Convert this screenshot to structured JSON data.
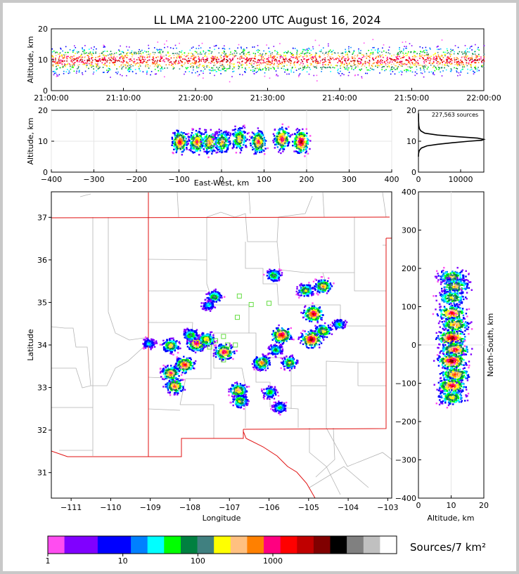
{
  "title": "LL LMA 2100-2200 UTC August 16, 2024",
  "colorbar": {
    "label": "Sources/7 km²",
    "ticks": [
      "1",
      "10",
      "100",
      "1000"
    ],
    "colors": [
      "#ff4df0",
      "#8000ff",
      "#8000ff",
      "#0000ff",
      "#0000ff",
      "#0080ff",
      "#00ffff",
      "#00ff00",
      "#008040",
      "#408080",
      "#ffff00",
      "#ffc080",
      "#ff8000",
      "#ff0080",
      "#ff0000",
      "#c00000",
      "#800000",
      "#000000",
      "#808080",
      "#c0c0c0",
      "#ffffff"
    ]
  },
  "chart_data": [
    {
      "id": "time-altitude",
      "type": "heatmap",
      "ylabel": "Altitude, km",
      "xlabel": "",
      "ylim": [
        0,
        20
      ],
      "xlim": [
        "21:00:00",
        "22:00:00"
      ],
      "x_ticks": [
        "21:00:00",
        "21:10:00",
        "21:20:00",
        "21:30:00",
        "21:40:00",
        "21:50:00",
        "22:00:00"
      ],
      "y_ticks": [
        "0",
        "10",
        "20"
      ],
      "peak_altitude_km": 10
    },
    {
      "id": "ew-altitude",
      "type": "heatmap",
      "xlabel": "East-West, km",
      "ylabel": "Altitude, km",
      "xlim": [
        -400,
        400
      ],
      "ylim": [
        0,
        20
      ],
      "x_ticks": [
        "−400",
        "−300",
        "−200",
        "−100",
        "0",
        "100",
        "200",
        "300",
        "400"
      ],
      "y_ticks": [
        "0",
        "10",
        "20"
      ],
      "cells": [
        {
          "x": -100,
          "alt": 10,
          "level": 15
        },
        {
          "x": -60,
          "alt": 10,
          "level": 14
        },
        {
          "x": -30,
          "alt": 10,
          "level": 13
        },
        {
          "x": 0,
          "alt": 10,
          "level": 12
        },
        {
          "x": 40,
          "alt": 11,
          "level": 12
        },
        {
          "x": 85,
          "alt": 10,
          "level": 14
        },
        {
          "x": 140,
          "alt": 11,
          "level": 15
        },
        {
          "x": 185,
          "alt": 10,
          "level": 17
        }
      ]
    },
    {
      "id": "altitude-histogram",
      "type": "line",
      "annotation": "227,563 sources",
      "xlim": [
        0,
        15500
      ],
      "ylim": [
        0,
        20
      ],
      "x_ticks": [
        "0",
        "10000"
      ],
      "y_ticks": [
        "0",
        "10",
        "20"
      ],
      "x": [
        5,
        40,
        200,
        700,
        2000,
        4500,
        8000,
        12000,
        15000,
        15500,
        14000,
        9000,
        4500,
        1500,
        600,
        250,
        100,
        40,
        10
      ],
      "y": [
        5,
        6,
        7,
        7.8,
        8.5,
        9,
        9.5,
        10,
        10.3,
        10.6,
        11,
        11.5,
        12,
        12.6,
        13.3,
        14,
        15,
        16.5,
        19
      ]
    },
    {
      "id": "plan-view",
      "type": "heatmap",
      "xlabel": "Longitude",
      "ylabel": "Latitude",
      "xlim": [
        -111.5,
        -102.9
      ],
      "ylim": [
        30.4,
        37.6
      ],
      "x_ticks": [
        "−111",
        "−110",
        "−109",
        "−108",
        "−107",
        "−106",
        "−105",
        "−104",
        "−103"
      ],
      "y_ticks": [
        "31",
        "32",
        "33",
        "34",
        "35",
        "36",
        "37"
      ],
      "cells": [
        {
          "lon": -104.95,
          "lat": 34.15,
          "level": 17
        },
        {
          "lon": -105.7,
          "lat": 34.25,
          "level": 16
        },
        {
          "lon": -104.9,
          "lat": 34.75,
          "level": 16
        },
        {
          "lon": -108.15,
          "lat": 33.55,
          "level": 15
        },
        {
          "lon": -107.85,
          "lat": 34.05,
          "level": 15
        },
        {
          "lon": -107.15,
          "lat": 33.85,
          "level": 15
        },
        {
          "lon": -108.4,
          "lat": 33.05,
          "level": 14
        },
        {
          "lon": -108.5,
          "lat": 33.35,
          "level": 14
        },
        {
          "lon": -106.8,
          "lat": 32.95,
          "level": 13
        },
        {
          "lon": -106.2,
          "lat": 33.6,
          "level": 13
        },
        {
          "lon": -104.65,
          "lat": 35.4,
          "level": 13
        },
        {
          "lon": -104.65,
          "lat": 34.35,
          "level": 12
        },
        {
          "lon": -108.5,
          "lat": 34.0,
          "level": 12
        },
        {
          "lon": -107.6,
          "lat": 34.15,
          "level": 12
        },
        {
          "lon": -105.1,
          "lat": 35.3,
          "level": 11
        },
        {
          "lon": -105.5,
          "lat": 33.6,
          "level": 11
        },
        {
          "lon": -106.75,
          "lat": 32.7,
          "level": 11
        },
        {
          "lon": -105.9,
          "lat": 35.65,
          "level": 10
        },
        {
          "lon": -107.4,
          "lat": 35.15,
          "level": 10
        },
        {
          "lon": -108.0,
          "lat": 34.25,
          "level": 10
        },
        {
          "lon": -105.85,
          "lat": 33.9,
          "level": 9
        },
        {
          "lon": -106.0,
          "lat": 32.9,
          "level": 9
        },
        {
          "lon": -105.75,
          "lat": 32.55,
          "level": 8
        },
        {
          "lon": -104.25,
          "lat": 34.5,
          "level": 8
        },
        {
          "lon": -109.05,
          "lat": 34.05,
          "level": 7
        },
        {
          "lon": -107.55,
          "lat": 34.95,
          "level": 7
        }
      ],
      "stations": [
        {
          "lon": -106.75,
          "lat": 35.15
        },
        {
          "lon": -106.45,
          "lat": 34.95
        },
        {
          "lon": -106.0,
          "lat": 34.98
        },
        {
          "lon": -106.8,
          "lat": 34.65
        },
        {
          "lon": -107.15,
          "lat": 34.2
        },
        {
          "lon": -107.35,
          "lat": 34.1
        },
        {
          "lon": -107.05,
          "lat": 34.0
        },
        {
          "lon": -106.85,
          "lat": 34.0
        },
        {
          "lon": -107.5,
          "lat": 33.95
        },
        {
          "lon": -107.15,
          "lat": 33.65
        }
      ]
    },
    {
      "id": "altitude-northsouth",
      "type": "heatmap",
      "xlabel": "Altitude, km",
      "ylabel": "North-South, km",
      "xlim": [
        0,
        20
      ],
      "ylim": [
        -400,
        400
      ],
      "x_ticks": [
        "0",
        "10",
        "20"
      ],
      "y_ticks": [
        "−400",
        "−300",
        "−200",
        "−100",
        "0",
        "100",
        "200",
        "300",
        "400"
      ],
      "cells": [
        {
          "alt": 10,
          "ns": 180,
          "level": 11
        },
        {
          "alt": 11,
          "ns": 155,
          "level": 12
        },
        {
          "alt": 10,
          "ns": 125,
          "level": 11
        },
        {
          "alt": 10,
          "ns": 85,
          "level": 15
        },
        {
          "alt": 11,
          "ns": 55,
          "level": 13
        },
        {
          "alt": 10,
          "ns": 20,
          "level": 17
        },
        {
          "alt": 11,
          "ns": -10,
          "level": 15
        },
        {
          "alt": 10,
          "ns": -40,
          "level": 17
        },
        {
          "alt": 11,
          "ns": -75,
          "level": 14
        },
        {
          "alt": 10,
          "ns": -105,
          "level": 15
        },
        {
          "alt": 10,
          "ns": -135,
          "level": 11
        }
      ]
    }
  ]
}
